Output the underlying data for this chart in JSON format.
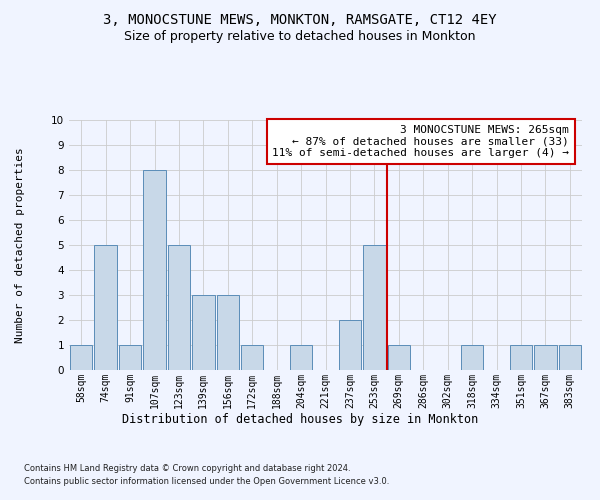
{
  "title1": "3, MONOCSTUNE MEWS, MONKTON, RAMSGATE, CT12 4EY",
  "title2": "Size of property relative to detached houses in Monkton",
  "xlabel": "Distribution of detached houses by size in Monkton",
  "ylabel": "Number of detached properties",
  "footer1": "Contains HM Land Registry data © Crown copyright and database right 2024.",
  "footer2": "Contains public sector information licensed under the Open Government Licence v3.0.",
  "bins": [
    "58sqm",
    "74sqm",
    "91sqm",
    "107sqm",
    "123sqm",
    "139sqm",
    "156sqm",
    "172sqm",
    "188sqm",
    "204sqm",
    "221sqm",
    "237sqm",
    "253sqm",
    "269sqm",
    "286sqm",
    "302sqm",
    "318sqm",
    "334sqm",
    "351sqm",
    "367sqm",
    "383sqm"
  ],
  "heights": [
    1,
    5,
    1,
    8,
    5,
    3,
    3,
    1,
    0,
    1,
    0,
    2,
    5,
    1,
    0,
    0,
    1,
    0,
    1,
    1,
    1
  ],
  "bar_color": "#c8d8e8",
  "bar_edge_color": "#5b8db8",
  "grid_color": "#cccccc",
  "vline_x_index": 12,
  "vline_color": "#cc0000",
  "annotation_text": "3 MONOCSTUNE MEWS: 265sqm\n← 87% of detached houses are smaller (33)\n11% of semi-detached houses are larger (4) →",
  "annotation_box_color": "#ffffff",
  "annotation_box_edge": "#cc0000",
  "ylim": [
    0,
    10
  ],
  "yticks": [
    0,
    1,
    2,
    3,
    4,
    5,
    6,
    7,
    8,
    9,
    10
  ],
  "background_color": "#f0f4ff",
  "title1_fontsize": 10,
  "title2_fontsize": 9,
  "xlabel_fontsize": 8.5,
  "ylabel_fontsize": 8,
  "tick_fontsize": 7,
  "annotation_fontsize": 8,
  "footer_fontsize": 6
}
